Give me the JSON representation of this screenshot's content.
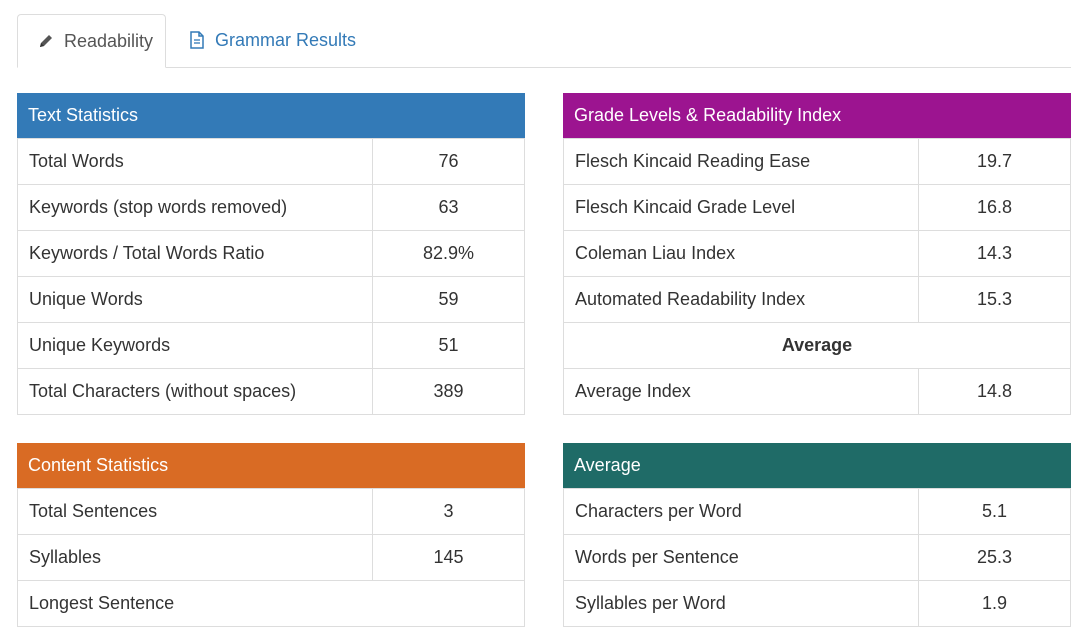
{
  "tabs": {
    "readability": {
      "label": "Readability",
      "icon": "pencil-icon"
    },
    "grammar": {
      "label": "Grammar Results",
      "icon": "document-icon"
    }
  },
  "colors": {
    "text_statistics": "#337ab7",
    "grade_levels": "#9c1490",
    "content_statistics": "#d96b24",
    "average": "#1f6b67",
    "tab_link": "#337ab7"
  },
  "text_statistics": {
    "title": "Text Statistics",
    "rows": [
      {
        "label": "Total Words",
        "value": "76"
      },
      {
        "label": "Keywords (stop words removed)",
        "value": "63"
      },
      {
        "label": "Keywords / Total Words Ratio",
        "value": "82.9%"
      },
      {
        "label": "Unique Words",
        "value": "59"
      },
      {
        "label": "Unique Keywords",
        "value": "51"
      },
      {
        "label": "Total Characters (without spaces)",
        "value": "389"
      }
    ]
  },
  "grade_levels": {
    "title": "Grade Levels & Readability Index",
    "rows": [
      {
        "label": "Flesch Kincaid Reading Ease",
        "value": "19.7"
      },
      {
        "label": "Flesch Kincaid Grade Level",
        "value": "16.8"
      },
      {
        "label": "Coleman Liau Index",
        "value": "14.3"
      },
      {
        "label": "Automated Readability Index",
        "value": "15.3"
      }
    ],
    "average_heading": "Average",
    "average_row": {
      "label": "Average Index",
      "value": "14.8"
    }
  },
  "content_statistics": {
    "title": "Content Statistics",
    "rows": [
      {
        "label": "Total Sentences",
        "value": "3"
      },
      {
        "label": "Syllables",
        "value": "145"
      }
    ],
    "longest_sentence_label": "Longest Sentence"
  },
  "average": {
    "title": "Average",
    "rows": [
      {
        "label": "Characters per Word",
        "value": "5.1"
      },
      {
        "label": "Words per Sentence",
        "value": "25.3"
      },
      {
        "label": "Syllables per Word",
        "value": "1.9"
      }
    ]
  }
}
